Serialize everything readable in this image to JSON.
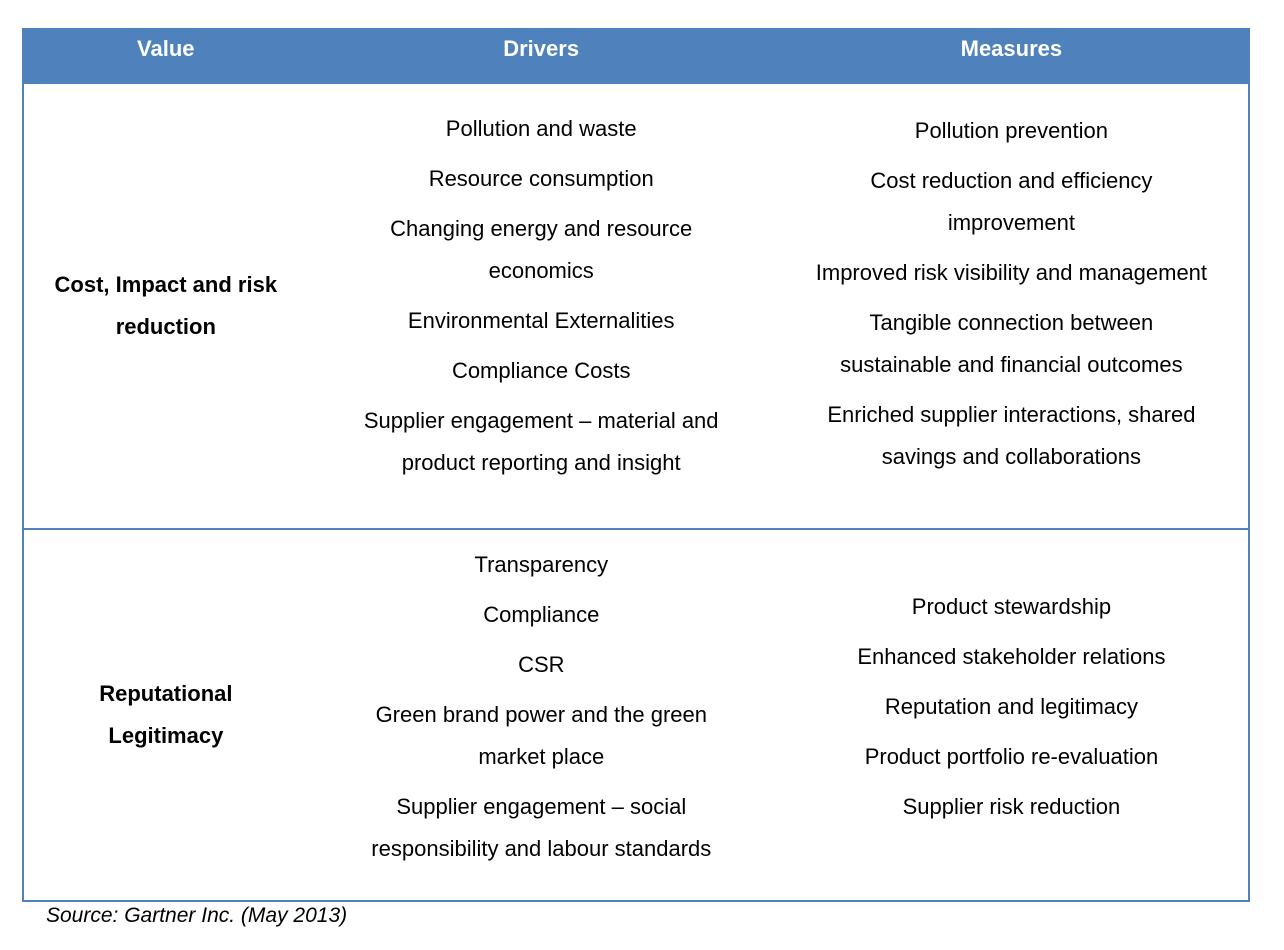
{
  "table": {
    "headers": [
      "Value",
      "Drivers",
      "Measures"
    ],
    "rows": [
      {
        "value": "Cost, Impact and risk reduction",
        "drivers": [
          "Pollution and waste",
          "Resource consumption",
          "Changing energy and resource economics",
          "Environmental Externalities",
          "Compliance Costs",
          "Supplier engagement – material and product reporting and insight"
        ],
        "measures": [
          "Pollution prevention",
          "Cost reduction and efficiency improvement",
          "Improved risk visibility and management",
          "Tangible connection between sustainable and financial outcomes",
          "Enriched supplier interactions, shared savings and collaborations"
        ]
      },
      {
        "value": "Reputational Legitimacy",
        "drivers": [
          "Transparency",
          "Compliance",
          "CSR",
          "Green brand power and the green market place",
          "Supplier engagement – social responsibility and labour standards"
        ],
        "measures": [
          "Product stewardship",
          "Enhanced stakeholder relations",
          "Reputation and legitimacy",
          "Product portfolio re-evaluation",
          "Supplier risk reduction"
        ]
      }
    ]
  },
  "source": "Source: Gartner Inc. (May 2013)",
  "colors": {
    "header_bg": "#4f81bd",
    "border": "#4f81bd",
    "header_text": "#ffffff"
  }
}
